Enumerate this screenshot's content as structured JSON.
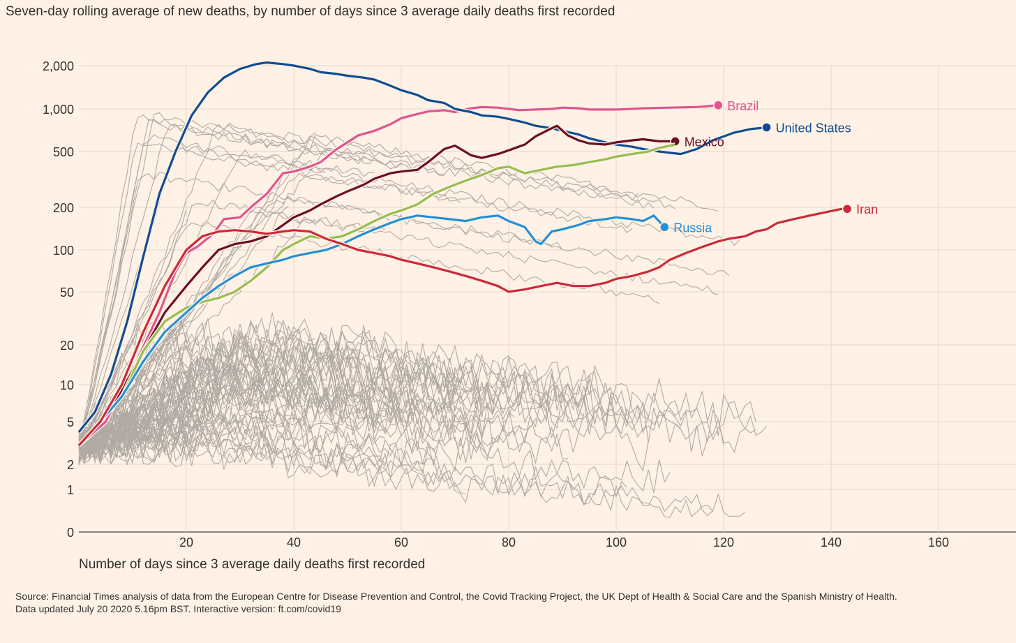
{
  "chart_data": {
    "type": "line",
    "title": "Seven-day rolling average of new deaths, by number of days since 3 average daily deaths first recorded",
    "xlabel": "Number of days since 3 average daily deaths first recorded",
    "ylabel": "",
    "y_scale": "log",
    "xlim": [
      0,
      175
    ],
    "y_ticks": [
      0,
      1,
      2,
      5,
      10,
      20,
      50,
      100,
      200,
      500,
      1000,
      2000
    ],
    "y_tick_labels": [
      "0",
      "1",
      "2",
      "5",
      "10",
      "20",
      "50",
      "100",
      "200",
      "500",
      "1,000",
      "2,000"
    ],
    "x_ticks": [
      20,
      40,
      60,
      80,
      100,
      120,
      140,
      160
    ],
    "x_tick_labels": [
      "20",
      "40",
      "60",
      "80",
      "100",
      "120",
      "140",
      "160"
    ],
    "grid": true,
    "background_series_color": "#b0aaa4",
    "highlighted_series": [
      {
        "name": "Brazil",
        "color": "#e0558e",
        "points": [
          [
            0,
            3
          ],
          [
            5,
            5
          ],
          [
            10,
            13
          ],
          [
            15,
            35
          ],
          [
            18,
            70
          ],
          [
            20,
            95
          ],
          [
            22,
            105
          ],
          [
            25,
            130
          ],
          [
            27,
            165
          ],
          [
            30,
            170
          ],
          [
            32,
            200
          ],
          [
            35,
            250
          ],
          [
            38,
            350
          ],
          [
            40,
            360
          ],
          [
            43,
            390
          ],
          [
            45,
            420
          ],
          [
            48,
            520
          ],
          [
            50,
            580
          ],
          [
            52,
            650
          ],
          [
            55,
            700
          ],
          [
            58,
            780
          ],
          [
            60,
            860
          ],
          [
            63,
            920
          ],
          [
            65,
            960
          ],
          [
            68,
            980
          ],
          [
            70,
            950
          ],
          [
            73,
            1010
          ],
          [
            75,
            1030
          ],
          [
            78,
            1020
          ],
          [
            80,
            1000
          ],
          [
            82,
            980
          ],
          [
            85,
            990
          ],
          [
            88,
            1000
          ],
          [
            90,
            1020
          ],
          [
            93,
            1010
          ],
          [
            95,
            990
          ],
          [
            98,
            990
          ],
          [
            100,
            990
          ],
          [
            103,
            1000
          ],
          [
            105,
            1010
          ],
          [
            110,
            1020
          ],
          [
            115,
            1030
          ],
          [
            119,
            1060
          ]
        ]
      },
      {
        "name": "United States",
        "color": "#0f4d92",
        "points": [
          [
            0,
            4
          ],
          [
            3,
            6
          ],
          [
            6,
            12
          ],
          [
            9,
            30
          ],
          [
            12,
            90
          ],
          [
            15,
            250
          ],
          [
            18,
            500
          ],
          [
            21,
            900
          ],
          [
            24,
            1300
          ],
          [
            27,
            1650
          ],
          [
            30,
            1900
          ],
          [
            33,
            2050
          ],
          [
            35,
            2100
          ],
          [
            38,
            2050
          ],
          [
            40,
            2000
          ],
          [
            43,
            1900
          ],
          [
            45,
            1800
          ],
          [
            48,
            1750
          ],
          [
            50,
            1700
          ],
          [
            53,
            1650
          ],
          [
            55,
            1600
          ],
          [
            58,
            1450
          ],
          [
            60,
            1350
          ],
          [
            63,
            1250
          ],
          [
            65,
            1150
          ],
          [
            68,
            1100
          ],
          [
            70,
            1000
          ],
          [
            73,
            950
          ],
          [
            75,
            900
          ],
          [
            78,
            880
          ],
          [
            80,
            850
          ],
          [
            83,
            800
          ],
          [
            85,
            760
          ],
          [
            88,
            730
          ],
          [
            90,
            700
          ],
          [
            93,
            660
          ],
          [
            95,
            620
          ],
          [
            98,
            580
          ],
          [
            100,
            560
          ],
          [
            103,
            540
          ],
          [
            105,
            520
          ],
          [
            108,
            500
          ],
          [
            112,
            480
          ],
          [
            115,
            520
          ],
          [
            118,
            600
          ],
          [
            122,
            680
          ],
          [
            125,
            720
          ],
          [
            128,
            740
          ]
        ]
      },
      {
        "name": "Mexico",
        "color": "#6b0f24",
        "points": [
          [
            0,
            3
          ],
          [
            4,
            5
          ],
          [
            8,
            9
          ],
          [
            12,
            18
          ],
          [
            16,
            35
          ],
          [
            20,
            55
          ],
          [
            23,
            75
          ],
          [
            26,
            100
          ],
          [
            29,
            110
          ],
          [
            32,
            115
          ],
          [
            35,
            125
          ],
          [
            38,
            150
          ],
          [
            40,
            170
          ],
          [
            43,
            190
          ],
          [
            45,
            210
          ],
          [
            48,
            240
          ],
          [
            50,
            260
          ],
          [
            53,
            290
          ],
          [
            55,
            320
          ],
          [
            58,
            350
          ],
          [
            60,
            360
          ],
          [
            63,
            370
          ],
          [
            65,
            420
          ],
          [
            68,
            520
          ],
          [
            70,
            550
          ],
          [
            73,
            470
          ],
          [
            75,
            450
          ],
          [
            78,
            480
          ],
          [
            80,
            510
          ],
          [
            83,
            560
          ],
          [
            85,
            640
          ],
          [
            88,
            730
          ],
          [
            89,
            760
          ],
          [
            91,
            650
          ],
          [
            93,
            600
          ],
          [
            95,
            570
          ],
          [
            98,
            560
          ],
          [
            100,
            580
          ],
          [
            103,
            600
          ],
          [
            105,
            610
          ],
          [
            108,
            590
          ],
          [
            111,
            590
          ]
        ]
      },
      {
        "name": "",
        "color": "#96bd4f",
        "points": [
          [
            0,
            3
          ],
          [
            4,
            5
          ],
          [
            8,
            8
          ],
          [
            12,
            18
          ],
          [
            16,
            30
          ],
          [
            20,
            38
          ],
          [
            23,
            42
          ],
          [
            26,
            45
          ],
          [
            29,
            50
          ],
          [
            32,
            60
          ],
          [
            35,
            75
          ],
          [
            38,
            100
          ],
          [
            40,
            110
          ],
          [
            43,
            125
          ],
          [
            46,
            120
          ],
          [
            49,
            125
          ],
          [
            52,
            140
          ],
          [
            55,
            160
          ],
          [
            58,
            180
          ],
          [
            60,
            190
          ],
          [
            63,
            210
          ],
          [
            66,
            250
          ],
          [
            69,
            280
          ],
          [
            72,
            310
          ],
          [
            75,
            340
          ],
          [
            78,
            380
          ],
          [
            80,
            390
          ],
          [
            83,
            350
          ],
          [
            86,
            370
          ],
          [
            89,
            390
          ],
          [
            92,
            400
          ],
          [
            95,
            420
          ],
          [
            98,
            440
          ],
          [
            100,
            460
          ],
          [
            103,
            480
          ],
          [
            106,
            500
          ],
          [
            108,
            530
          ],
          [
            111,
            560
          ]
        ]
      },
      {
        "name": "Russia",
        "color": "#2490d4",
        "points": [
          [
            0,
            3
          ],
          [
            4,
            5
          ],
          [
            8,
            8
          ],
          [
            12,
            15
          ],
          [
            16,
            25
          ],
          [
            20,
            35
          ],
          [
            23,
            45
          ],
          [
            26,
            55
          ],
          [
            29,
            65
          ],
          [
            32,
            75
          ],
          [
            35,
            80
          ],
          [
            38,
            85
          ],
          [
            40,
            90
          ],
          [
            43,
            95
          ],
          [
            46,
            100
          ],
          [
            49,
            110
          ],
          [
            52,
            125
          ],
          [
            55,
            140
          ],
          [
            58,
            155
          ],
          [
            60,
            165
          ],
          [
            63,
            175
          ],
          [
            66,
            170
          ],
          [
            69,
            165
          ],
          [
            72,
            160
          ],
          [
            75,
            170
          ],
          [
            78,
            175
          ],
          [
            80,
            160
          ],
          [
            83,
            145
          ],
          [
            85,
            115
          ],
          [
            86,
            110
          ],
          [
            88,
            135
          ],
          [
            90,
            140
          ],
          [
            93,
            150
          ],
          [
            95,
            160
          ],
          [
            98,
            165
          ],
          [
            100,
            170
          ],
          [
            103,
            165
          ],
          [
            105,
            160
          ],
          [
            107,
            175
          ],
          [
            109,
            145
          ]
        ]
      },
      {
        "name": "Iran",
        "color": "#cc2939",
        "points": [
          [
            0,
            3
          ],
          [
            4,
            5
          ],
          [
            8,
            10
          ],
          [
            12,
            25
          ],
          [
            16,
            55
          ],
          [
            20,
            100
          ],
          [
            23,
            125
          ],
          [
            26,
            135
          ],
          [
            29,
            138
          ],
          [
            32,
            135
          ],
          [
            35,
            130
          ],
          [
            38,
            135
          ],
          [
            40,
            138
          ],
          [
            43,
            135
          ],
          [
            46,
            120
          ],
          [
            49,
            110
          ],
          [
            52,
            100
          ],
          [
            55,
            95
          ],
          [
            58,
            90
          ],
          [
            60,
            85
          ],
          [
            63,
            80
          ],
          [
            66,
            75
          ],
          [
            69,
            70
          ],
          [
            72,
            65
          ],
          [
            75,
            60
          ],
          [
            78,
            55
          ],
          [
            80,
            50
          ],
          [
            83,
            52
          ],
          [
            86,
            55
          ],
          [
            89,
            58
          ],
          [
            92,
            55
          ],
          [
            95,
            55
          ],
          [
            98,
            58
          ],
          [
            100,
            62
          ],
          [
            103,
            65
          ],
          [
            106,
            70
          ],
          [
            108,
            75
          ],
          [
            110,
            85
          ],
          [
            113,
            95
          ],
          [
            116,
            105
          ],
          [
            119,
            115
          ],
          [
            121,
            120
          ],
          [
            124,
            125
          ],
          [
            126,
            135
          ],
          [
            128,
            140
          ],
          [
            130,
            155
          ],
          [
            133,
            165
          ],
          [
            136,
            175
          ],
          [
            139,
            185
          ],
          [
            142,
            195
          ],
          [
            143,
            195
          ]
        ]
      }
    ],
    "source": "Source: Financial Times analysis of data from the European Centre for Disease Prevention and Control, the Covid Tracking Project, the UK Dept of Health & Social Care and the Spanish Ministry of Health.",
    "updated": "Data updated July 20 2020 5.16pm BST. Interactive version: ft.com/covid19"
  }
}
